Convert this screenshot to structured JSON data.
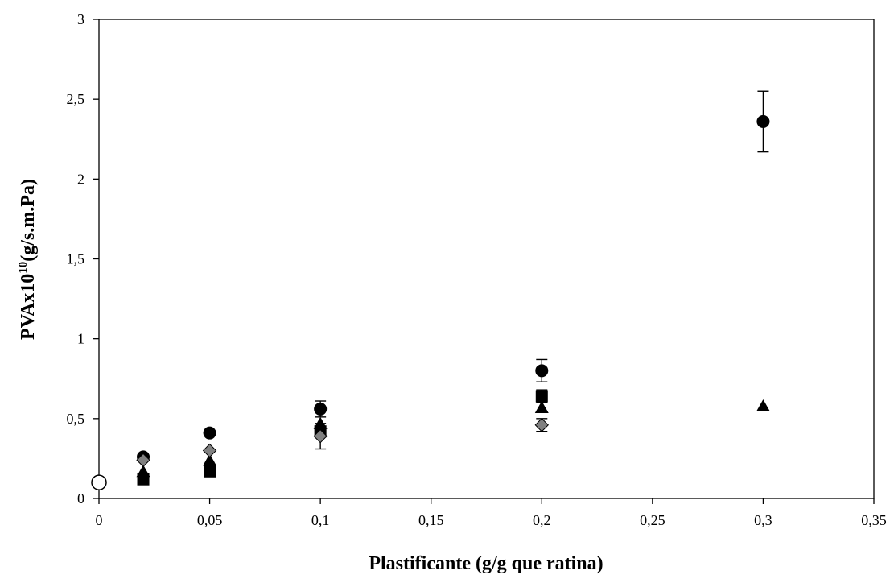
{
  "chart_data": {
    "type": "scatter",
    "title": "",
    "xlabel": "Plastificante (g/g que ratina)",
    "ylabel_main": "PVAx10",
    "ylabel_sup": "10",
    "ylabel_unit": "(g/s.m.Pa)",
    "xlim": [
      0,
      0.35
    ],
    "ylim": [
      0,
      3
    ],
    "x_ticks": [
      0,
      0.05,
      0.1,
      0.15,
      0.2,
      0.25,
      0.3,
      0.35
    ],
    "x_tick_labels": [
      "0",
      "0,05",
      "0,1",
      "0,15",
      "0,2",
      "0,25",
      "0,3",
      "0,35"
    ],
    "y_ticks": [
      0,
      0.5,
      1,
      1.5,
      2,
      2.5,
      3
    ],
    "y_tick_labels": [
      "0",
      "0,5",
      "1",
      "1,5",
      "2",
      "2,5",
      "3"
    ],
    "grid": false,
    "legend": "none",
    "series": [
      {
        "marker": "circle-open",
        "color": "#000000",
        "points": [
          {
            "x": 0,
            "y": 0.1,
            "err": 0
          }
        ]
      },
      {
        "marker": "circle",
        "color": "#000000",
        "points": [
          {
            "x": 0.02,
            "y": 0.26,
            "err": 0
          },
          {
            "x": 0.05,
            "y": 0.41,
            "err": 0
          },
          {
            "x": 0.1,
            "y": 0.56,
            "err": 0.05
          },
          {
            "x": 0.2,
            "y": 0.8,
            "err": 0.07
          },
          {
            "x": 0.3,
            "y": 2.36,
            "err": 0.19
          }
        ]
      },
      {
        "marker": "square",
        "color": "#000000",
        "points": [
          {
            "x": 0.02,
            "y": 0.12,
            "err": 0
          },
          {
            "x": 0.05,
            "y": 0.17,
            "err": 0
          },
          {
            "x": 0.1,
            "y": 0.42,
            "err": 0
          },
          {
            "x": 0.2,
            "y": 0.64,
            "err": 0.04
          }
        ]
      },
      {
        "marker": "triangle",
        "color": "#000000",
        "points": [
          {
            "x": 0.02,
            "y": 0.17,
            "err": 0
          },
          {
            "x": 0.05,
            "y": 0.24,
            "err": 0
          },
          {
            "x": 0.1,
            "y": 0.47,
            "err": 0
          },
          {
            "x": 0.2,
            "y": 0.57,
            "err": 0
          },
          {
            "x": 0.3,
            "y": 0.58,
            "err": 0
          }
        ]
      },
      {
        "marker": "diamond",
        "color": "#808080",
        "points": [
          {
            "x": 0.02,
            "y": 0.24,
            "err": 0
          },
          {
            "x": 0.05,
            "y": 0.3,
            "err": 0
          },
          {
            "x": 0.1,
            "y": 0.39,
            "err": 0.08
          },
          {
            "x": 0.2,
            "y": 0.46,
            "err": 0.04
          }
        ]
      }
    ]
  }
}
